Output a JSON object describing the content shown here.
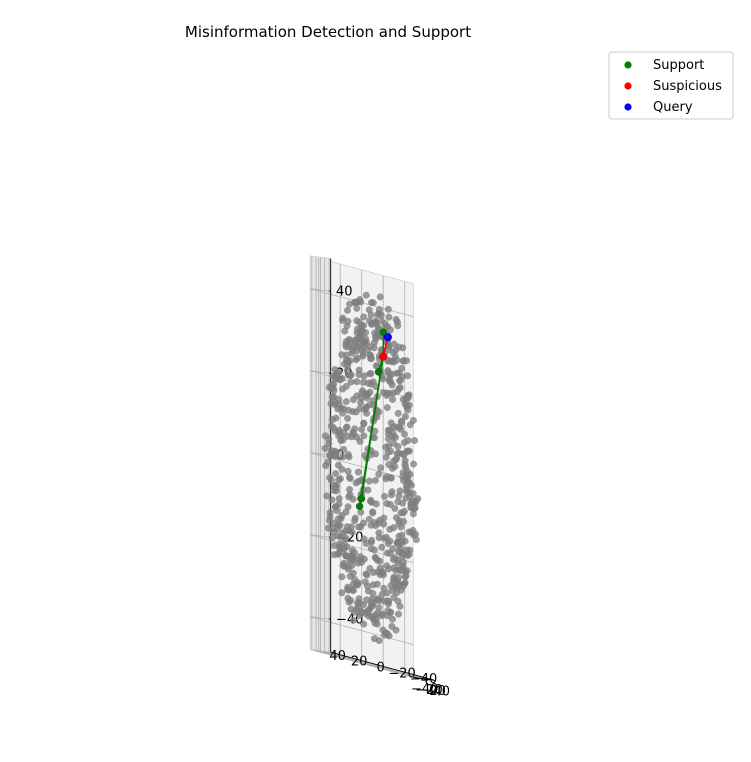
{
  "chart_data": {
    "type": "scatter",
    "title": "Misinformation Detection and Support",
    "legend": {
      "placement": "top-right",
      "entries": [
        {
          "label": "Support",
          "color": "#008000"
        },
        {
          "label": "Suspicious",
          "color": "#ff0000"
        },
        {
          "label": "Query",
          "color": "#0000ff"
        }
      ]
    },
    "axes": {
      "x": {
        "ticks": [
          "−40",
          "−20",
          "0",
          "20",
          "40"
        ],
        "tick_values": [
          -40,
          -20,
          0,
          20,
          40
        ],
        "range": [
          -48,
          48
        ]
      },
      "y": {
        "ticks": [
          "−40",
          "−20",
          "0",
          "20",
          "40"
        ],
        "tick_values": [
          -40,
          -20,
          0,
          20,
          40
        ],
        "range": [
          -48,
          48
        ]
      },
      "z": {
        "ticks": [
          "−40",
          "−20",
          "0",
          "20",
          "40"
        ],
        "tick_values": [
          -40,
          -20,
          0,
          20,
          40
        ],
        "range": [
          -48,
          48
        ]
      }
    },
    "grid": true,
    "background_points": {
      "color": "#808080",
      "count": 700,
      "distribution": "sphere",
      "radius": 44
    },
    "query_point": {
      "x": -6,
      "y": -16,
      "z": 33
    },
    "suspicious_point": {
      "x": -8,
      "y": -12,
      "z": 28
    },
    "support_points": [
      {
        "x": -20,
        "y": -10,
        "z": 24
      },
      {
        "x": -17,
        "y": -14,
        "z": 34
      },
      {
        "x": -24,
        "y": 5,
        "z": -8
      },
      {
        "x": -23,
        "y": 7,
        "z": -10
      }
    ],
    "line_colors": {
      "support": "#008000",
      "suspicious": "#ff0000"
    }
  }
}
